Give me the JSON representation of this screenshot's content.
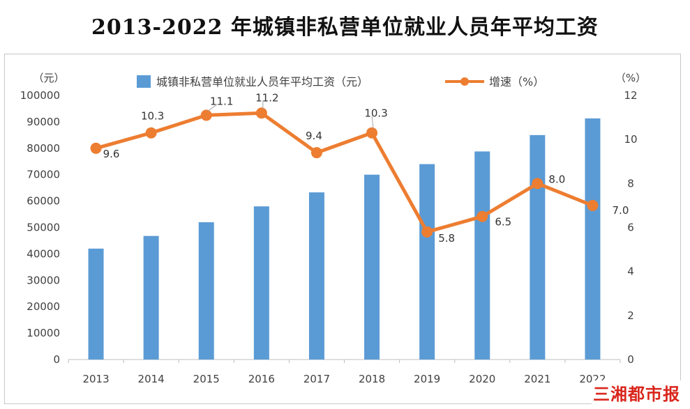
{
  "title": "2013-2022 年城镇非私营单位就业人员年平均工资",
  "watermark": "三湘都市报",
  "chart_data": {
    "type": "bar+line",
    "categories": [
      "2013",
      "2014",
      "2015",
      "2016",
      "2017",
      "2018",
      "2019",
      "2020",
      "2021",
      "2022"
    ],
    "series": [
      {
        "name": "城镇非私营单位就业人员年平均工资（元）",
        "type": "bar",
        "axis": "left",
        "color": "#5b9bd5",
        "values": [
          42000,
          46800,
          52000,
          58000,
          63300,
          70000,
          74000,
          78800,
          85000,
          91300
        ]
      },
      {
        "name": "增速（%）",
        "type": "line",
        "axis": "right",
        "color": "#ed7d31",
        "values": [
          9.6,
          10.3,
          11.1,
          11.2,
          9.4,
          10.3,
          5.8,
          6.5,
          8.0,
          7.0
        ],
        "labels": [
          "9.6",
          "10.3",
          "11.1",
          "11.2",
          "9.4",
          "10.3",
          "5.8",
          "6.5",
          "8.0",
          "7.0"
        ]
      }
    ],
    "y_left": {
      "unit": "（元）",
      "ylim": [
        0,
        100000
      ],
      "ticks": [
        "0",
        "10000",
        "20000",
        "30000",
        "40000",
        "50000",
        "60000",
        "70000",
        "80000",
        "90000",
        "100000"
      ]
    },
    "y_right": {
      "unit": "（%）",
      "ylim": [
        0,
        12
      ],
      "ticks": [
        "0",
        "2",
        "4",
        "6",
        "8",
        "10",
        "12"
      ]
    },
    "grid": false,
    "legend_position": "top"
  }
}
